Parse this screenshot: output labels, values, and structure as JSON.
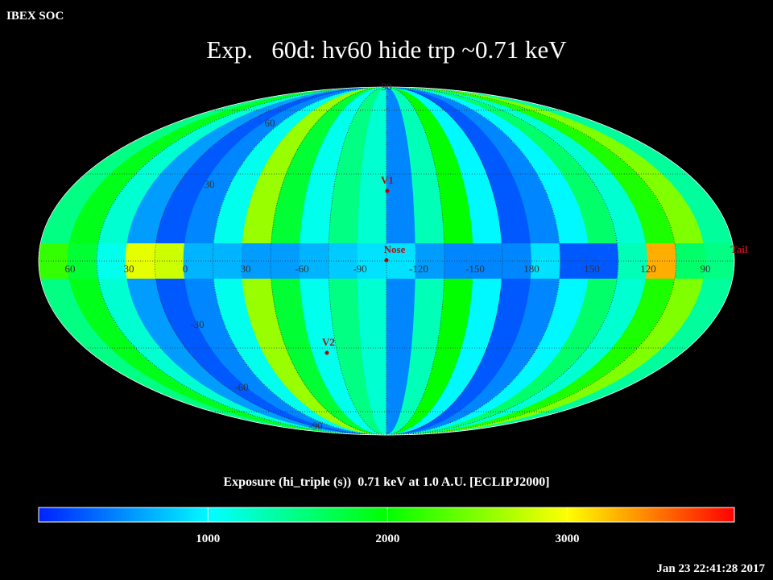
{
  "header": {
    "app": "IBEX SOC",
    "timestamp": "Jan 23 22:41:28 2017"
  },
  "chart_data": {
    "type": "skymap",
    "title": "Exp.   60d: hv60 hide trp ~0.71 keV",
    "colorbar_label": "Exposure (hi_triple (s))  0.71 keV at 1.0 A.U. [ECLIPJ2000]",
    "clim": [
      58,
      3930
    ],
    "colorbar_ticks": [
      1000,
      2000,
      3000
    ],
    "strips": [
      1500,
      1900,
      1200,
      600,
      300,
      500,
      1100,
      2600,
      1800,
      1100,
      1500,
      1200,
      500,
      1300,
      2000,
      1000,
      300,
      500,
      1000,
      1600,
      1200,
      2100,
      2500,
      1400
    ],
    "ecliptic_band": [
      2200,
      1800,
      1100,
      2900,
      2800,
      700,
      700,
      600,
      600,
      700,
      800,
      900,
      900,
      600,
      500,
      500,
      500,
      900,
      300,
      300,
      1300,
      3300,
      1600,
      1500
    ],
    "longitude_labels": [
      "60",
      "30",
      "0",
      "30",
      "-60",
      "-90",
      "-120",
      "-150",
      "180",
      "150",
      "120",
      "90"
    ],
    "latitude_labels": [
      "90",
      "60",
      "30",
      "-30",
      "-60",
      "-90"
    ],
    "markers": [
      "V1",
      "Nose",
      "V2",
      "Tail"
    ]
  }
}
